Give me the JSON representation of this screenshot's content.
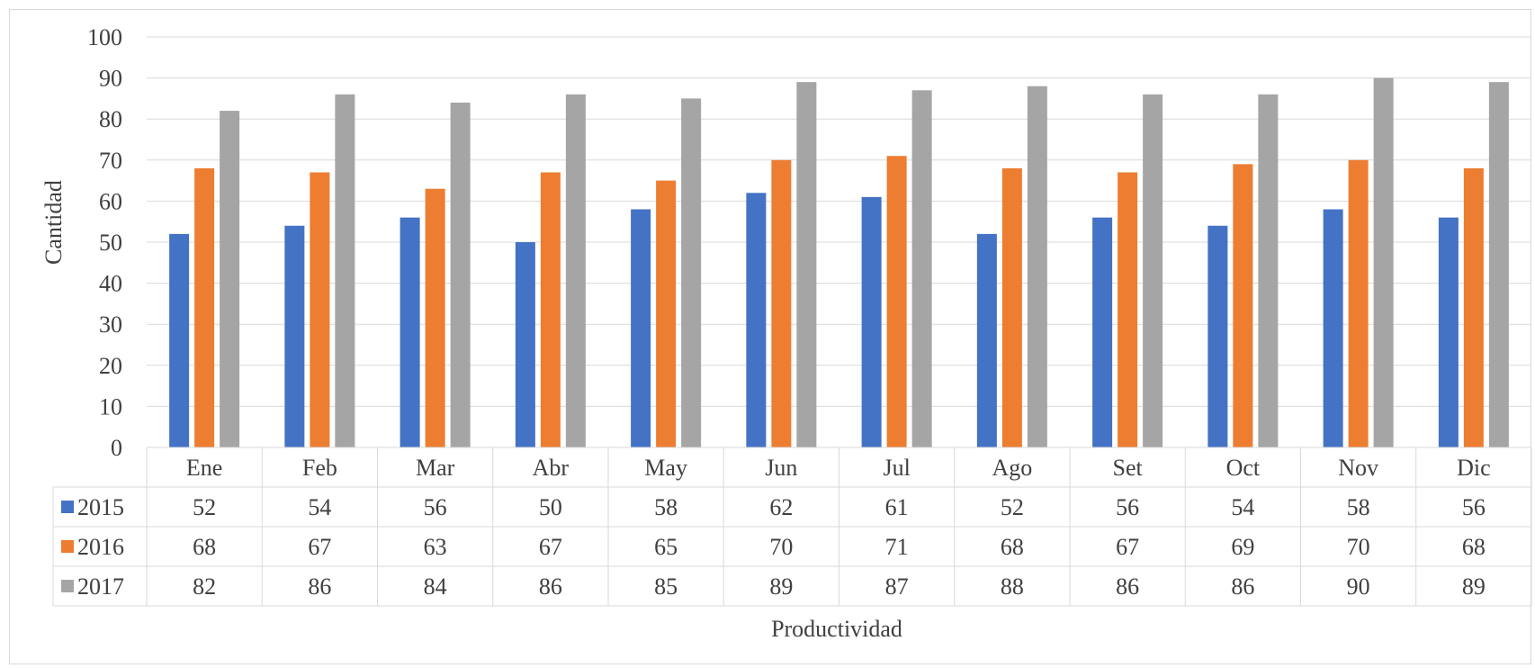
{
  "chart_data": {
    "type": "bar",
    "title": "",
    "xlabel": "Productividad",
    "ylabel": "Cantidad",
    "ylim": [
      0,
      100
    ],
    "yticks": [
      0,
      10,
      20,
      30,
      40,
      50,
      60,
      70,
      80,
      90,
      100
    ],
    "grid": true,
    "legend": "data-table",
    "categories": [
      "Ene",
      "Feb",
      "Mar",
      "Abr",
      "May",
      "Jun",
      "Jul",
      "Ago",
      "Set",
      "Oct",
      "Nov",
      "Dic"
    ],
    "series": [
      {
        "name": "2015",
        "color": "#4472c4",
        "values": [
          52,
          54,
          56,
          50,
          58,
          62,
          61,
          52,
          56,
          54,
          58,
          56
        ]
      },
      {
        "name": "2016",
        "color": "#ed7d31",
        "values": [
          68,
          67,
          63,
          67,
          65,
          70,
          71,
          68,
          67,
          69,
          70,
          68
        ]
      },
      {
        "name": "2017",
        "color": "#a5a5a5",
        "values": [
          82,
          86,
          84,
          86,
          85,
          89,
          87,
          88,
          86,
          86,
          90,
          89
        ]
      }
    ]
  }
}
